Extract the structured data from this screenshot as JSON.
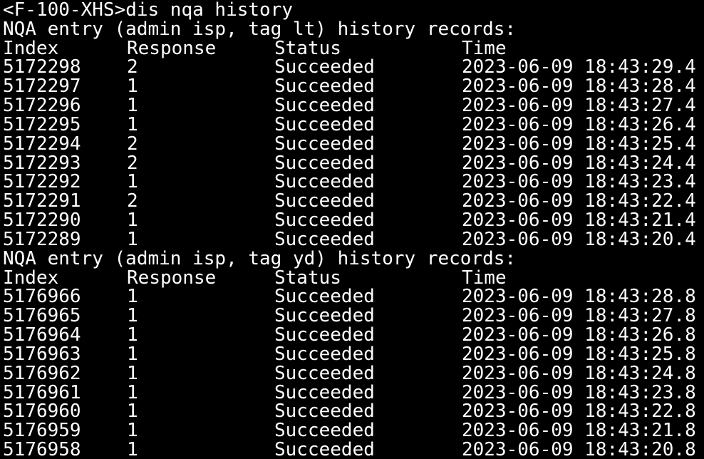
{
  "terminal": {
    "colors": {
      "background": "#000000",
      "text": "#ffffff"
    },
    "prompt": "<F-100-XHS>",
    "command": "dis nqa history",
    "columns": {
      "index": "Index",
      "response": "Response",
      "status": "Status",
      "time": "Time"
    },
    "sections": [
      {
        "title": "NQA entry (admin isp, tag lt) history records:",
        "rows": [
          {
            "index": "5172298",
            "response": "2",
            "status": "Succeeded",
            "time": "2023-06-09 18:43:29.4"
          },
          {
            "index": "5172297",
            "response": "1",
            "status": "Succeeded",
            "time": "2023-06-09 18:43:28.4"
          },
          {
            "index": "5172296",
            "response": "1",
            "status": "Succeeded",
            "time": "2023-06-09 18:43:27.4"
          },
          {
            "index": "5172295",
            "response": "1",
            "status": "Succeeded",
            "time": "2023-06-09 18:43:26.4"
          },
          {
            "index": "5172294",
            "response": "2",
            "status": "Succeeded",
            "time": "2023-06-09 18:43:25.4"
          },
          {
            "index": "5172293",
            "response": "2",
            "status": "Succeeded",
            "time": "2023-06-09 18:43:24.4"
          },
          {
            "index": "5172292",
            "response": "1",
            "status": "Succeeded",
            "time": "2023-06-09 18:43:23.4"
          },
          {
            "index": "5172291",
            "response": "2",
            "status": "Succeeded",
            "time": "2023-06-09 18:43:22.4"
          },
          {
            "index": "5172290",
            "response": "1",
            "status": "Succeeded",
            "time": "2023-06-09 18:43:21.4"
          },
          {
            "index": "5172289",
            "response": "1",
            "status": "Succeeded",
            "time": "2023-06-09 18:43:20.4"
          }
        ]
      },
      {
        "title": "NQA entry (admin isp, tag yd) history records:",
        "rows": [
          {
            "index": "5176966",
            "response": "1",
            "status": "Succeeded",
            "time": "2023-06-09 18:43:28.8"
          },
          {
            "index": "5176965",
            "response": "1",
            "status": "Succeeded",
            "time": "2023-06-09 18:43:27.8"
          },
          {
            "index": "5176964",
            "response": "1",
            "status": "Succeeded",
            "time": "2023-06-09 18:43:26.8"
          },
          {
            "index": "5176963",
            "response": "1",
            "status": "Succeeded",
            "time": "2023-06-09 18:43:25.8"
          },
          {
            "index": "5176962",
            "response": "1",
            "status": "Succeeded",
            "time": "2023-06-09 18:43:24.8"
          },
          {
            "index": "5176961",
            "response": "1",
            "status": "Succeeded",
            "time": "2023-06-09 18:43:23.8"
          },
          {
            "index": "5176960",
            "response": "1",
            "status": "Succeeded",
            "time": "2023-06-09 18:43:22.8"
          },
          {
            "index": "5176959",
            "response": "1",
            "status": "Succeeded",
            "time": "2023-06-09 18:43:21.8"
          },
          {
            "index": "5176958",
            "response": "1",
            "status": "Succeeded",
            "time": "2023-06-09 18:43:20.8"
          }
        ]
      }
    ]
  }
}
